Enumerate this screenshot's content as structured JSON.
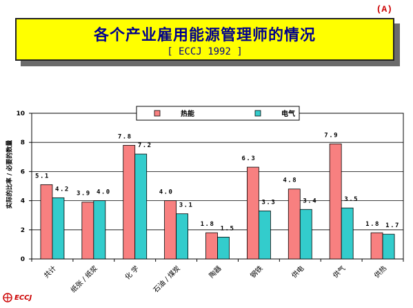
{
  "corner_tag": "(A)",
  "banner": {
    "title": "各个产业雇用能源管理师的情况",
    "subtitle": "[ ECCJ 1992 ]"
  },
  "logo": {
    "text": "ECCJ"
  },
  "colors": {
    "series1": "#f88080",
    "series2": "#33cccc",
    "banner_bg": "#ffff00",
    "title_color": "#00008b"
  },
  "chart_data": {
    "type": "bar",
    "title": "",
    "ylabel": "实际的比率 / 必要的数量",
    "xlabel": "",
    "ylim": [
      0,
      10
    ],
    "yticks": [
      0,
      2,
      4,
      6,
      8,
      10
    ],
    "grid": true,
    "legend_position": "top",
    "categories": [
      "共计",
      "纸张 / 纸浆",
      "化 学",
      "石油 / 煤炭",
      "陶器",
      "钢铁",
      "供电",
      "供气",
      "供热"
    ],
    "series": [
      {
        "name": "热能",
        "values": [
          5.1,
          3.9,
          7.8,
          4.0,
          1.8,
          6.3,
          4.8,
          7.9,
          1.8
        ]
      },
      {
        "name": "电气",
        "values": [
          4.2,
          4.0,
          7.2,
          3.1,
          1.5,
          3.3,
          3.4,
          3.5,
          1.7
        ]
      }
    ]
  }
}
